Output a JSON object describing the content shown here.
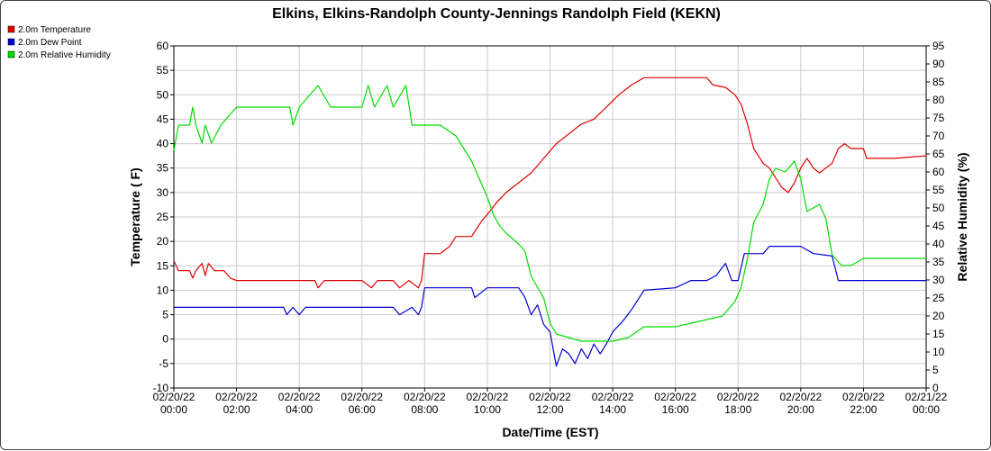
{
  "chart_data": {
    "type": "line",
    "title": "Elkins, Elkins-Randolph County-Jennings Randolph Field (KEKN)",
    "xlabel": "Date/Time (EST)",
    "ylabel_left": "Temperature ( F)",
    "ylabel_right": "Relative Humidity (%)",
    "ylim_left": [
      -10,
      60
    ],
    "ylim_right": [
      0,
      95
    ],
    "xlim_hours": [
      0,
      24
    ],
    "x_unit": "hours after 02/20/22 00:00 EST",
    "left_ticks": [
      "60",
      "55",
      "50",
      "45",
      "40",
      "35",
      "30",
      "25",
      "20",
      "15",
      "10",
      "5",
      "0",
      "-5",
      "-10"
    ],
    "right_ticks": [
      "95",
      "90",
      "85",
      "80",
      "75",
      "70",
      "65",
      "60",
      "55",
      "50",
      "45",
      "40",
      "35",
      "30",
      "25",
      "20",
      "15",
      "10",
      "5",
      "0"
    ],
    "x_ticks": [
      {
        "date": "02/20/22",
        "time": "00:00"
      },
      {
        "date": "02/20/22",
        "time": "02:00"
      },
      {
        "date": "02/20/22",
        "time": "04:00"
      },
      {
        "date": "02/20/22",
        "time": "06:00"
      },
      {
        "date": "02/20/22",
        "time": "08:00"
      },
      {
        "date": "02/20/22",
        "time": "10:00"
      },
      {
        "date": "02/20/22",
        "time": "12:00"
      },
      {
        "date": "02/20/22",
        "time": "14:00"
      },
      {
        "date": "02/20/22",
        "time": "16:00"
      },
      {
        "date": "02/20/22",
        "time": "18:00"
      },
      {
        "date": "02/20/22",
        "time": "20:00"
      },
      {
        "date": "02/20/22",
        "time": "22:00"
      },
      {
        "date": "02/21/22",
        "time": "00:00"
      }
    ],
    "grid": true,
    "legend_position": "top-left",
    "series": [
      {
        "name": "2.0m Temperature",
        "color": "#e00000",
        "axis": "left",
        "points": [
          [
            0,
            16
          ],
          [
            0.15,
            14
          ],
          [
            0.5,
            14
          ],
          [
            0.6,
            12.5
          ],
          [
            0.7,
            14
          ],
          [
            0.9,
            15.5
          ],
          [
            1.0,
            13
          ],
          [
            1.1,
            15.5
          ],
          [
            1.3,
            14
          ],
          [
            1.6,
            14
          ],
          [
            1.8,
            12.5
          ],
          [
            2.0,
            12
          ],
          [
            3.0,
            12
          ],
          [
            4.0,
            12
          ],
          [
            4.5,
            12
          ],
          [
            4.6,
            10.5
          ],
          [
            4.8,
            12
          ],
          [
            6.0,
            12
          ],
          [
            6.3,
            10.5
          ],
          [
            6.5,
            12
          ],
          [
            7.0,
            12
          ],
          [
            7.2,
            10.5
          ],
          [
            7.5,
            12
          ],
          [
            7.8,
            10.5
          ],
          [
            7.9,
            12
          ],
          [
            8.0,
            17.5
          ],
          [
            8.5,
            17.5
          ],
          [
            8.8,
            19
          ],
          [
            9.0,
            21
          ],
          [
            9.5,
            21
          ],
          [
            9.8,
            24
          ],
          [
            10.0,
            25.5
          ],
          [
            10.3,
            28
          ],
          [
            10.6,
            30
          ],
          [
            11.0,
            32
          ],
          [
            11.4,
            34
          ],
          [
            11.8,
            37
          ],
          [
            12.2,
            40
          ],
          [
            12.6,
            42
          ],
          [
            13.0,
            44
          ],
          [
            13.4,
            45
          ],
          [
            13.8,
            47.5
          ],
          [
            14.2,
            50
          ],
          [
            14.6,
            52
          ],
          [
            15.0,
            53.5
          ],
          [
            15.5,
            53.5
          ],
          [
            16.0,
            53.5
          ],
          [
            16.5,
            53.5
          ],
          [
            17.0,
            53.5
          ],
          [
            17.2,
            52
          ],
          [
            17.6,
            51.5
          ],
          [
            17.9,
            50
          ],
          [
            18.1,
            48
          ],
          [
            18.3,
            44
          ],
          [
            18.5,
            39
          ],
          [
            18.8,
            36
          ],
          [
            19.0,
            35
          ],
          [
            19.2,
            33
          ],
          [
            19.4,
            31
          ],
          [
            19.6,
            30
          ],
          [
            19.8,
            32
          ],
          [
            20.0,
            35
          ],
          [
            20.2,
            37
          ],
          [
            20.4,
            35
          ],
          [
            20.6,
            34
          ],
          [
            20.8,
            35
          ],
          [
            21.0,
            36
          ],
          [
            21.2,
            39
          ],
          [
            21.4,
            40
          ],
          [
            21.6,
            39
          ],
          [
            22.0,
            39
          ],
          [
            22.1,
            37
          ],
          [
            23.0,
            37
          ],
          [
            24.0,
            37.5
          ]
        ]
      },
      {
        "name": "2.0m Dew Point",
        "color": "#0000d0",
        "axis": "left",
        "points": [
          [
            0,
            6.5
          ],
          [
            1.0,
            6.5
          ],
          [
            2.0,
            6.5
          ],
          [
            3.0,
            6.5
          ],
          [
            3.5,
            6.5
          ],
          [
            3.6,
            5
          ],
          [
            3.8,
            6.5
          ],
          [
            4.0,
            5
          ],
          [
            4.2,
            6.5
          ],
          [
            5.0,
            6.5
          ],
          [
            6.0,
            6.5
          ],
          [
            7.0,
            6.5
          ],
          [
            7.2,
            5
          ],
          [
            7.6,
            6.5
          ],
          [
            7.8,
            5
          ],
          [
            7.9,
            6.5
          ],
          [
            8.0,
            10.5
          ],
          [
            9.0,
            10.5
          ],
          [
            9.5,
            10.5
          ],
          [
            9.6,
            8.5
          ],
          [
            10.0,
            10.5
          ],
          [
            11.0,
            10.5
          ],
          [
            11.2,
            8.5
          ],
          [
            11.4,
            5
          ],
          [
            11.6,
            7
          ],
          [
            11.8,
            3
          ],
          [
            12.0,
            1.5
          ],
          [
            12.1,
            -2
          ],
          [
            12.2,
            -5.5
          ],
          [
            12.4,
            -2
          ],
          [
            12.6,
            -3
          ],
          [
            12.8,
            -5
          ],
          [
            13.0,
            -2
          ],
          [
            13.2,
            -4
          ],
          [
            13.4,
            -1
          ],
          [
            13.6,
            -3
          ],
          [
            13.8,
            -1
          ],
          [
            14.0,
            1.5
          ],
          [
            14.3,
            3.5
          ],
          [
            14.6,
            6
          ],
          [
            15.0,
            10
          ],
          [
            16.0,
            10.5
          ],
          [
            16.5,
            12
          ],
          [
            17.0,
            12
          ],
          [
            17.3,
            13
          ],
          [
            17.6,
            15.5
          ],
          [
            17.8,
            12
          ],
          [
            18.0,
            12
          ],
          [
            18.2,
            17.5
          ],
          [
            18.8,
            17.5
          ],
          [
            19.0,
            19
          ],
          [
            20.0,
            19
          ],
          [
            20.4,
            17.5
          ],
          [
            21.0,
            17
          ],
          [
            21.2,
            12
          ],
          [
            21.6,
            12
          ],
          [
            23.0,
            12
          ],
          [
            24.0,
            12
          ]
        ]
      },
      {
        "name": "2.0m Relative Humidity",
        "color": "#00dd00",
        "axis": "right",
        "points": [
          [
            0,
            66
          ],
          [
            0.15,
            73
          ],
          [
            0.5,
            73
          ],
          [
            0.6,
            78
          ],
          [
            0.7,
            73
          ],
          [
            0.9,
            68
          ],
          [
            1.0,
            73
          ],
          [
            1.2,
            68
          ],
          [
            1.5,
            73
          ],
          [
            1.8,
            76
          ],
          [
            2.0,
            78
          ],
          [
            3.0,
            78
          ],
          [
            3.7,
            78
          ],
          [
            3.8,
            73
          ],
          [
            4.0,
            78
          ],
          [
            4.6,
            84
          ],
          [
            5.0,
            78
          ],
          [
            6.0,
            78
          ],
          [
            6.2,
            84
          ],
          [
            6.4,
            78
          ],
          [
            6.8,
            84
          ],
          [
            7.0,
            78
          ],
          [
            7.4,
            84
          ],
          [
            7.6,
            73
          ],
          [
            8.0,
            73
          ],
          [
            8.5,
            73
          ],
          [
            9.0,
            70
          ],
          [
            9.5,
            63
          ],
          [
            10.0,
            53
          ],
          [
            10.2,
            48
          ],
          [
            10.4,
            45
          ],
          [
            10.6,
            43
          ],
          [
            11.0,
            40
          ],
          [
            11.2,
            38
          ],
          [
            11.4,
            31
          ],
          [
            11.8,
            25
          ],
          [
            12.0,
            18
          ],
          [
            12.2,
            15
          ],
          [
            12.6,
            14
          ],
          [
            13.0,
            13
          ],
          [
            13.5,
            13
          ],
          [
            14.0,
            13
          ],
          [
            14.5,
            14
          ],
          [
            15.0,
            17
          ],
          [
            16.0,
            17
          ],
          [
            16.5,
            18
          ],
          [
            17.0,
            19
          ],
          [
            17.5,
            20
          ],
          [
            17.9,
            24
          ],
          [
            18.1,
            28
          ],
          [
            18.3,
            36
          ],
          [
            18.5,
            46
          ],
          [
            18.8,
            51
          ],
          [
            19.0,
            58
          ],
          [
            19.2,
            61
          ],
          [
            19.5,
            60
          ],
          [
            19.8,
            63
          ],
          [
            20.0,
            58
          ],
          [
            20.2,
            49
          ],
          [
            20.6,
            51
          ],
          [
            20.8,
            47
          ],
          [
            21.0,
            37
          ],
          [
            21.3,
            34
          ],
          [
            21.6,
            34
          ],
          [
            22.0,
            36
          ],
          [
            23.0,
            36
          ],
          [
            24.0,
            36
          ]
        ]
      }
    ]
  }
}
